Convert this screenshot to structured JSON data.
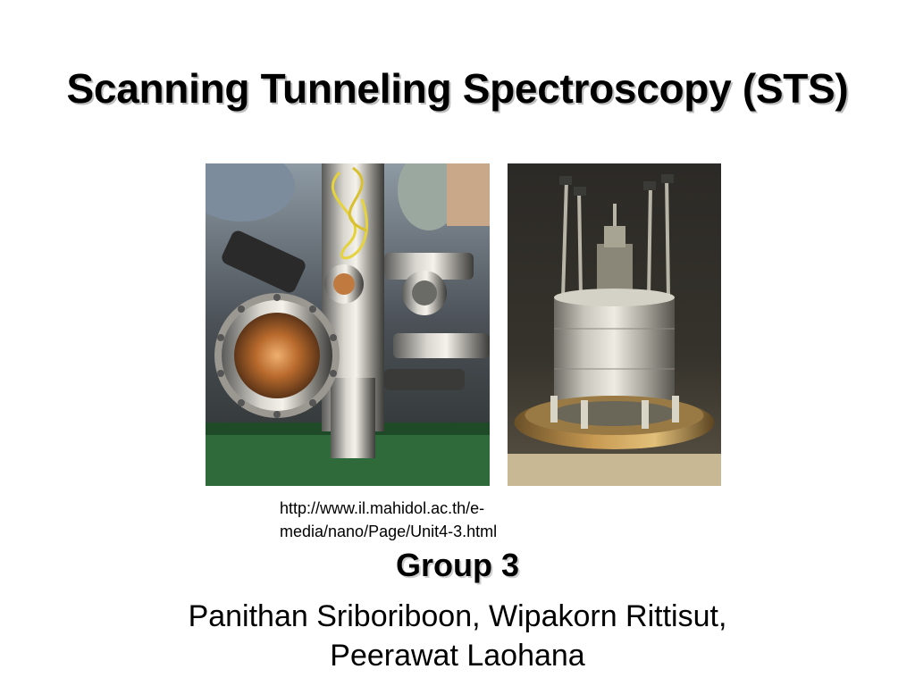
{
  "slide": {
    "title": "Scanning Tunneling Spectroscopy (STS)",
    "source_url_line1": "http://www.il.mahidol.ac.th/e-",
    "source_url_line2": "media/nano/Page/Unit4-3.html",
    "group_label": "Group 3",
    "members_line1": "Panithan Sriboriboon, Wipakorn Rittisut,",
    "members_line2": "Peerawat Laohana"
  }
}
